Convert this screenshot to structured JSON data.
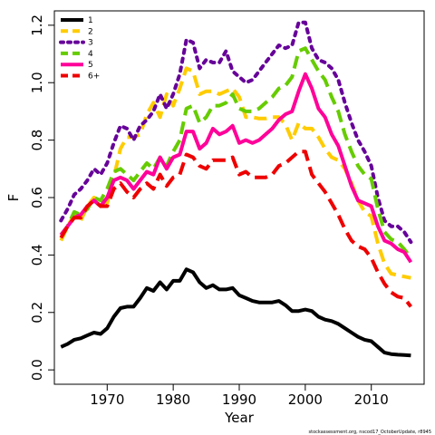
{
  "chart_data": {
    "type": "line",
    "title": "",
    "xlabel": "Year",
    "ylabel": "F",
    "xlim": [
      1962,
      2018
    ],
    "ylim": [
      -0.05,
      1.25
    ],
    "xticks": [
      1970,
      1980,
      1990,
      2000,
      2010
    ],
    "yticks": [
      0.0,
      0.2,
      0.4,
      0.6,
      0.8,
      1.0,
      1.2
    ],
    "ytick_labels": [
      "0.0",
      "0.2",
      "0.4",
      "0.6",
      "0.8",
      "1.0",
      "1.2"
    ],
    "legend_position": "top-left",
    "grid": false,
    "credit": "stockassessment.org, nscod17_OctoberUpdate, r8945",
    "x": [
      1963,
      1964,
      1965,
      1966,
      1967,
      1968,
      1969,
      1970,
      1971,
      1972,
      1973,
      1974,
      1975,
      1976,
      1977,
      1978,
      1979,
      1980,
      1981,
      1982,
      1983,
      1984,
      1985,
      1986,
      1987,
      1988,
      1989,
      1990,
      1991,
      1992,
      1993,
      1994,
      1995,
      1996,
      1997,
      1998,
      1999,
      2000,
      2001,
      2002,
      2003,
      2004,
      2005,
      2006,
      2007,
      2008,
      2009,
      2010,
      2011,
      2012,
      2013,
      2014,
      2015,
      2016
    ],
    "series": [
      {
        "name": "1",
        "color": "#000000",
        "dash": "solid",
        "values": [
          0.08,
          0.09,
          0.105,
          0.11,
          0.12,
          0.13,
          0.125,
          0.145,
          0.185,
          0.215,
          0.22,
          0.22,
          0.25,
          0.285,
          0.275,
          0.305,
          0.28,
          0.31,
          0.31,
          0.35,
          0.34,
          0.305,
          0.285,
          0.295,
          0.28,
          0.28,
          0.285,
          0.26,
          0.25,
          0.24,
          0.235,
          0.235,
          0.235,
          0.24,
          0.225,
          0.205,
          0.205,
          0.21,
          0.205,
          0.185,
          0.175,
          0.17,
          0.16,
          0.145,
          0.13,
          0.115,
          0.105,
          0.1,
          0.08,
          0.06,
          0.055,
          0.053,
          0.052,
          0.05
        ]
      },
      {
        "name": "2",
        "color": "#ffcc00",
        "dash": "dashed",
        "values": [
          0.45,
          0.5,
          0.54,
          0.52,
          0.57,
          0.6,
          0.57,
          0.58,
          0.67,
          0.77,
          0.81,
          0.81,
          0.82,
          0.89,
          0.93,
          0.88,
          0.96,
          0.92,
          0.98,
          1.05,
          1.04,
          0.96,
          0.97,
          0.97,
          0.96,
          0.97,
          0.98,
          0.95,
          0.88,
          0.88,
          0.875,
          0.875,
          0.88,
          0.88,
          0.855,
          0.8,
          0.86,
          0.84,
          0.84,
          0.81,
          0.77,
          0.74,
          0.73,
          0.7,
          0.65,
          0.59,
          0.55,
          0.535,
          0.44,
          0.37,
          0.335,
          0.33,
          0.325,
          0.32
        ]
      },
      {
        "name": "3",
        "color": "#660099",
        "dash": "dotted",
        "values": [
          0.52,
          0.56,
          0.61,
          0.63,
          0.66,
          0.7,
          0.68,
          0.72,
          0.79,
          0.85,
          0.84,
          0.8,
          0.85,
          0.87,
          0.9,
          0.96,
          0.91,
          0.96,
          1.03,
          1.15,
          1.14,
          1.05,
          1.08,
          1.07,
          1.07,
          1.11,
          1.04,
          1.02,
          1.0,
          1.01,
          1.04,
          1.07,
          1.1,
          1.13,
          1.12,
          1.13,
          1.21,
          1.21,
          1.12,
          1.08,
          1.07,
          1.05,
          1.01,
          0.93,
          0.86,
          0.8,
          0.76,
          0.71,
          0.6,
          0.52,
          0.5,
          0.5,
          0.48,
          0.445
        ]
      },
      {
        "name": "4",
        "color": "#66cc00",
        "dash": "dashed",
        "values": [
          0.47,
          0.5,
          0.55,
          0.54,
          0.56,
          0.6,
          0.59,
          0.63,
          0.69,
          0.7,
          0.68,
          0.66,
          0.69,
          0.72,
          0.7,
          0.74,
          0.71,
          0.76,
          0.8,
          0.91,
          0.92,
          0.86,
          0.88,
          0.92,
          0.92,
          0.93,
          0.96,
          0.91,
          0.9,
          0.9,
          0.91,
          0.93,
          0.95,
          0.98,
          0.99,
          1.02,
          1.11,
          1.12,
          1.08,
          1.04,
          1.01,
          0.95,
          0.9,
          0.82,
          0.76,
          0.71,
          0.68,
          0.665,
          0.56,
          0.48,
          0.455,
          0.445,
          0.42,
          0.39
        ]
      },
      {
        "name": "5",
        "color": "#ff0099",
        "dash": "solid",
        "values": [
          0.47,
          0.5,
          0.53,
          0.54,
          0.57,
          0.59,
          0.57,
          0.6,
          0.66,
          0.67,
          0.66,
          0.63,
          0.66,
          0.69,
          0.68,
          0.74,
          0.7,
          0.74,
          0.75,
          0.83,
          0.83,
          0.77,
          0.79,
          0.84,
          0.82,
          0.83,
          0.85,
          0.79,
          0.8,
          0.79,
          0.8,
          0.82,
          0.84,
          0.87,
          0.89,
          0.9,
          0.97,
          1.03,
          0.98,
          0.91,
          0.88,
          0.82,
          0.78,
          0.71,
          0.64,
          0.59,
          0.58,
          0.57,
          0.5,
          0.45,
          0.44,
          0.42,
          0.41,
          0.375
        ]
      },
      {
        "name": "6+",
        "color": "#ee0000",
        "dash": "dashed",
        "values": [
          0.46,
          0.5,
          0.53,
          0.53,
          0.57,
          0.59,
          0.57,
          0.57,
          0.63,
          0.65,
          0.62,
          0.6,
          0.63,
          0.65,
          0.63,
          0.68,
          0.64,
          0.67,
          0.68,
          0.75,
          0.74,
          0.71,
          0.7,
          0.73,
          0.73,
          0.73,
          0.74,
          0.68,
          0.69,
          0.67,
          0.67,
          0.67,
          0.68,
          0.71,
          0.72,
          0.74,
          0.76,
          0.76,
          0.68,
          0.65,
          0.62,
          0.58,
          0.54,
          0.49,
          0.45,
          0.43,
          0.42,
          0.39,
          0.34,
          0.3,
          0.27,
          0.255,
          0.25,
          0.22
        ]
      }
    ]
  }
}
